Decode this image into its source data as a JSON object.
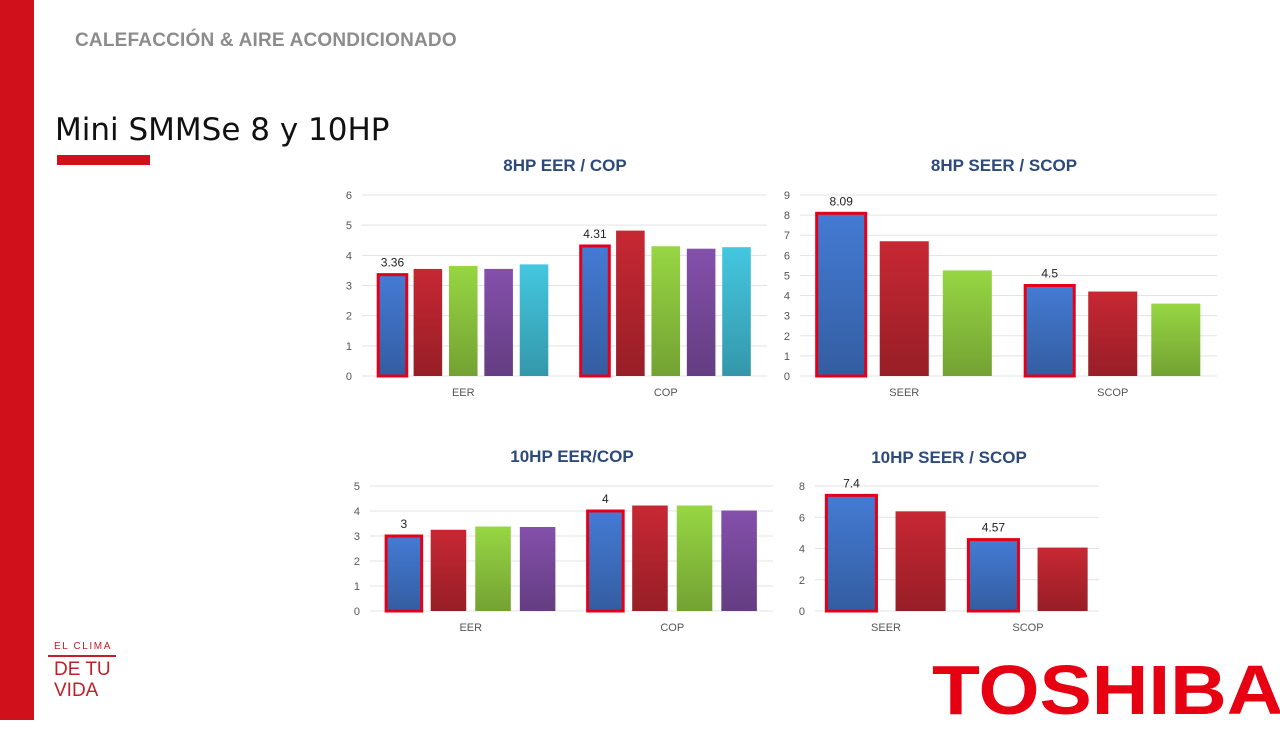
{
  "header": {
    "title": "CALEFACCIÓN & AIRE ACONDICIONADO"
  },
  "page": {
    "title": "Mini SMMSe 8 y 10HP"
  },
  "branding": {
    "slogan_top": "EL CLIMA",
    "slogan_line1": "DE TU",
    "slogan_line2": "VIDA",
    "logo": "TOSHIBA"
  },
  "colors": {
    "brand_red": "#d0111b",
    "title_blue": "#2e4a7a",
    "highlight_border": "#e3001b"
  },
  "chart_data": [
    {
      "type": "bar",
      "title": "8HP EER / COP",
      "categories": [
        "EER",
        "COP"
      ],
      "ylim": [
        0,
        6
      ],
      "yticks": [
        0,
        1,
        2,
        3,
        4,
        5,
        6
      ],
      "series": [
        {
          "name": "Series 1",
          "color": "#3f72c4",
          "values": [
            3.36,
            4.31
          ],
          "highlight": true,
          "labels": [
            "3.36",
            "4.31"
          ]
        },
        {
          "name": "Series 2",
          "color": "#b8252f",
          "values": [
            3.55,
            4.82
          ]
        },
        {
          "name": "Series 3",
          "color": "#8cc63e",
          "values": [
            3.65,
            4.3
          ]
        },
        {
          "name": "Series 4",
          "color": "#7a4a9e",
          "values": [
            3.55,
            4.22
          ]
        },
        {
          "name": "Series 5",
          "color": "#3fb8cf",
          "values": [
            3.7,
            4.27
          ]
        }
      ]
    },
    {
      "type": "bar",
      "title": "8HP SEER / SCOP",
      "categories": [
        "SEER",
        "SCOP"
      ],
      "ylim": [
        0,
        9
      ],
      "yticks": [
        0,
        1,
        2,
        3,
        4,
        5,
        6,
        7,
        8,
        9
      ],
      "series": [
        {
          "name": "Series 1",
          "color": "#3f72c4",
          "values": [
            8.09,
            4.5
          ],
          "highlight": true,
          "labels": [
            "8.09",
            "4.5"
          ]
        },
        {
          "name": "Series 2",
          "color": "#b8252f",
          "values": [
            6.7,
            4.2
          ]
        },
        {
          "name": "Series 3",
          "color": "#8cc63e",
          "values": [
            5.25,
            3.6
          ]
        }
      ]
    },
    {
      "type": "bar",
      "title": "10HP EER/COP",
      "categories": [
        "EER",
        "COP"
      ],
      "ylim": [
        0,
        5
      ],
      "yticks": [
        0,
        1,
        2,
        3,
        4,
        5
      ],
      "series": [
        {
          "name": "Series 1",
          "color": "#3f72c4",
          "values": [
            3,
            4
          ],
          "highlight": true,
          "labels": [
            "3",
            "4"
          ]
        },
        {
          "name": "Series 2",
          "color": "#b8252f",
          "values": [
            3.25,
            4.22
          ]
        },
        {
          "name": "Series 3",
          "color": "#8cc63e",
          "values": [
            3.38,
            4.22
          ]
        },
        {
          "name": "Series 4",
          "color": "#7a4a9e",
          "values": [
            3.36,
            4.02
          ]
        }
      ]
    },
    {
      "type": "bar",
      "title": "10HP SEER / SCOP",
      "categories": [
        "SEER",
        "SCOP"
      ],
      "ylim": [
        0,
        8
      ],
      "yticks": [
        0,
        2,
        4,
        6,
        8
      ],
      "series": [
        {
          "name": "Series 1",
          "color": "#3f72c4",
          "values": [
            7.4,
            4.57
          ],
          "highlight": true,
          "labels": [
            "7.4",
            "4.57"
          ]
        },
        {
          "name": "Series 2",
          "color": "#b8252f",
          "values": [
            6.38,
            4.06
          ]
        }
      ]
    }
  ]
}
